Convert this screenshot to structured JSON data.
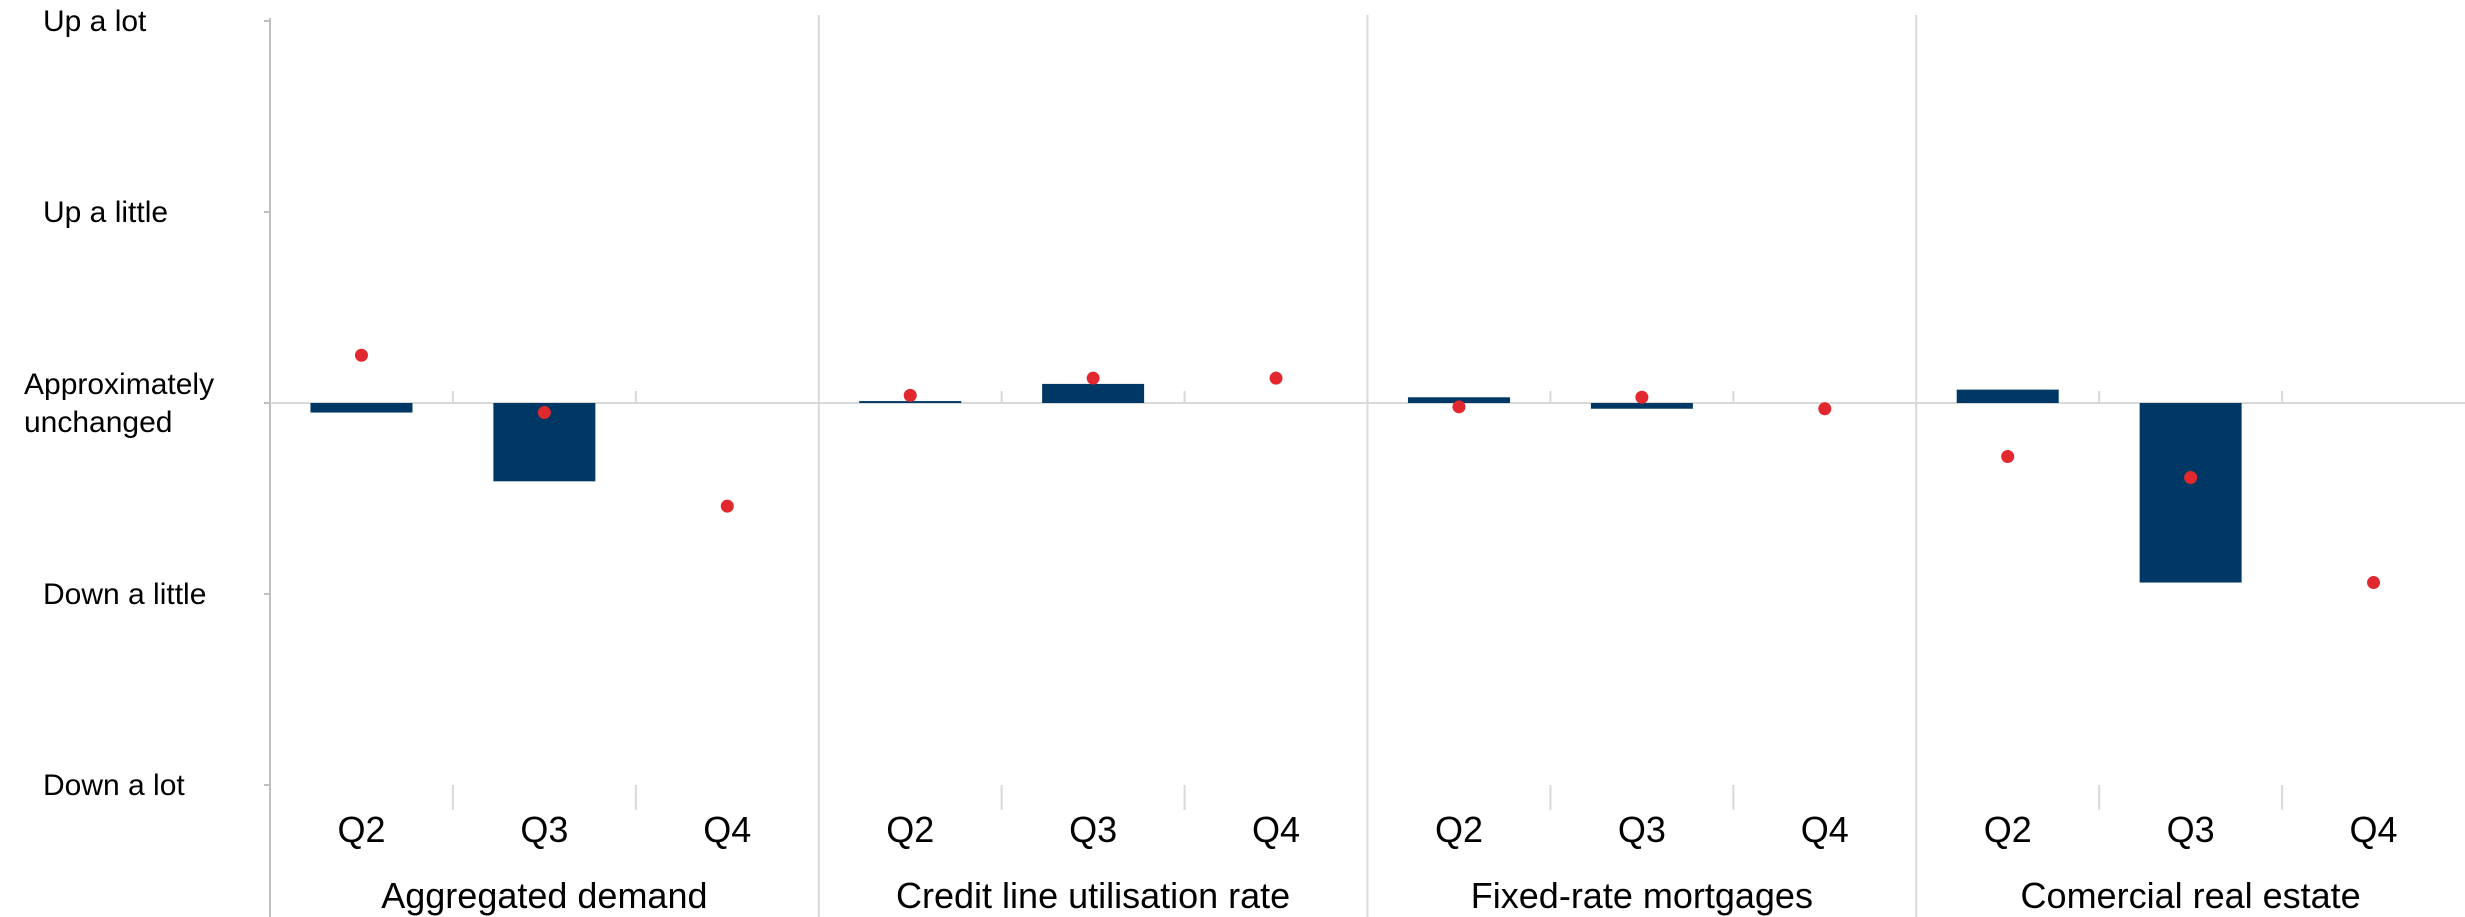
{
  "chart_data": {
    "type": "bar",
    "title": "",
    "xlabel": "",
    "ylabel": "",
    "ylim": [
      -2,
      2
    ],
    "y_tick_values": [
      2,
      1,
      0,
      -1,
      -2
    ],
    "y_tick_labels": [
      "Up a lot",
      "Up a little",
      "Approximately\nunchanged",
      "Down a little",
      "Down a lot"
    ],
    "groups": [
      {
        "name": "Aggregated demand",
        "categories": [
          "Q2",
          "Q3",
          "Q4"
        ],
        "bars": [
          -0.05,
          -0.41,
          null
        ],
        "points": [
          0.25,
          -0.05,
          -0.54
        ]
      },
      {
        "name": "Credit line utilisation rate",
        "categories": [
          "Q2",
          "Q3",
          "Q4"
        ],
        "bars": [
          0.01,
          0.1,
          null
        ],
        "points": [
          0.04,
          0.13,
          0.13
        ]
      },
      {
        "name": "Fixed-rate mortgages",
        "categories": [
          "Q2",
          "Q3",
          "Q4"
        ],
        "bars": [
          0.03,
          -0.03,
          null
        ],
        "points": [
          -0.02,
          0.03,
          -0.03
        ]
      },
      {
        "name": "Comercial real estate",
        "categories": [
          "Q2",
          "Q3",
          "Q4"
        ],
        "bars": [
          0.07,
          -0.94,
          null
        ],
        "points": [
          -0.28,
          -0.39,
          -0.94
        ]
      }
    ],
    "colors": {
      "bar": "#003865",
      "point": "#e0282e",
      "grid": "#d9d9d9",
      "axis": "#bfbfbf"
    },
    "grid": false,
    "legend": "none"
  }
}
